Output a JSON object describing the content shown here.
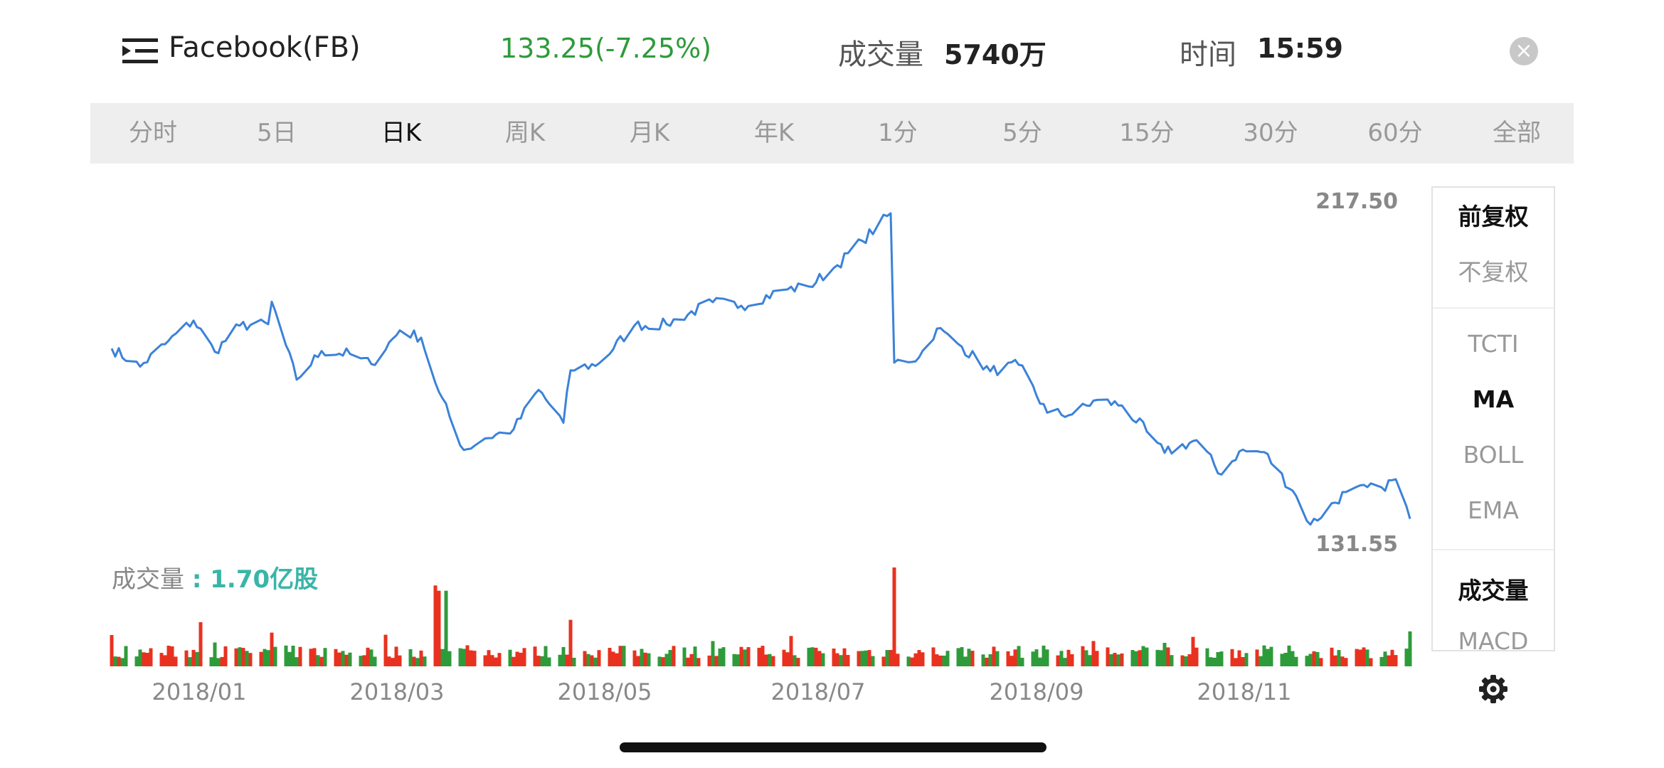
{
  "header": {
    "title": "Facebook(FB)",
    "price_change": "133.25(-7.25%)",
    "volume_label": "成交量",
    "volume_value": "5740万",
    "time_label": "时间",
    "time_value": "15:59",
    "icons": {
      "menu": "menu-icon",
      "close": "close-icon"
    }
  },
  "periods": [
    "分时",
    "5日",
    "日K",
    "周K",
    "月K",
    "年K",
    "1分",
    "5分",
    "15分",
    "30分",
    "60分",
    "全部"
  ],
  "active_period": "日K",
  "price_scale": {
    "max": "217.50",
    "min": "131.55"
  },
  "volume_title": {
    "label": "成交量 ",
    "value": ": 1.70亿股"
  },
  "x_axis_labels": [
    "2018/01",
    "2018/03",
    "2018/05",
    "2018/07",
    "2018/09",
    "2018/11"
  ],
  "side_panel": {
    "items": [
      {
        "label": "前复权",
        "active": true
      },
      {
        "label": "不复权",
        "active": false
      },
      {
        "label": "TCTI",
        "active": false
      },
      {
        "label": "MA",
        "active": true
      },
      {
        "label": "BOLL",
        "active": false
      },
      {
        "label": "EMA",
        "active": false
      },
      {
        "label": "成交量",
        "active": true
      },
      {
        "label": "MACD",
        "active": false
      }
    ]
  },
  "colors": {
    "line": "#3b82d8",
    "up": "#e8321f",
    "down": "#2e9b3a",
    "accent": "#3ab5a8"
  },
  "chart_data": {
    "type": "line",
    "series_name": "",
    "ylim": [
      131.55,
      217.5
    ],
    "x_labels": [
      "2018/01",
      "2018/03",
      "2018/05",
      "2018/07",
      "2018/09",
      "2018/11"
    ],
    "price_keypoints": [
      [
        "2017-12-18",
        180.2
      ],
      [
        "2017-12-26",
        175.2
      ],
      [
        "2018-01-02",
        181.4
      ],
      [
        "2018-01-10",
        187.9
      ],
      [
        "2018-01-16",
        179.3
      ],
      [
        "2018-01-23",
        186.5
      ],
      [
        "2018-01-31",
        186.9
      ],
      [
        "2018-02-01",
        193.1
      ],
      [
        "2018-02-08",
        171.6
      ],
      [
        "2018-02-15",
        179.5
      ],
      [
        "2018-02-23",
        178.7
      ],
      [
        "2018-03-01",
        175.9
      ],
      [
        "2018-03-09",
        185.2
      ],
      [
        "2018-03-15",
        183.2
      ],
      [
        "2018-03-20",
        168.2
      ],
      [
        "2018-03-27",
        152.2
      ],
      [
        "2018-04-02",
        155.4
      ],
      [
        "2018-04-10",
        157.9
      ],
      [
        "2018-04-17",
        168.8
      ],
      [
        "2018-04-24",
        159.7
      ],
      [
        "2018-04-26",
        174.2
      ],
      [
        "2018-05-04",
        176.1
      ],
      [
        "2018-05-14",
        186.6
      ],
      [
        "2018-05-23",
        186.9
      ],
      [
        "2018-06-05",
        193.0
      ],
      [
        "2018-06-13",
        192.0
      ],
      [
        "2018-06-25",
        196.4
      ],
      [
        "2018-07-02",
        197.3
      ],
      [
        "2018-07-10",
        203.2
      ],
      [
        "2018-07-17",
        209.9
      ],
      [
        "2018-07-25",
        217.5
      ],
      [
        "2018-07-26",
        176.3
      ],
      [
        "2018-08-02",
        177.8
      ],
      [
        "2018-08-07",
        185.7
      ],
      [
        "2018-08-14",
        180.7
      ],
      [
        "2018-08-22",
        173.9
      ],
      [
        "2018-08-30",
        175.7
      ],
      [
        "2018-09-07",
        162.5
      ],
      [
        "2018-09-14",
        162.0
      ],
      [
        "2018-09-21",
        166.0
      ],
      [
        "2018-09-28",
        164.5
      ],
      [
        "2018-10-05",
        157.3
      ],
      [
        "2018-10-10",
        151.4
      ],
      [
        "2018-10-19",
        154.9
      ],
      [
        "2018-10-26",
        145.4
      ],
      [
        "2018-10-31",
        151.8
      ],
      [
        "2018-11-07",
        151.6
      ],
      [
        "2018-11-16",
        139.5
      ],
      [
        "2018-11-20",
        131.6
      ],
      [
        "2018-11-30",
        140.6
      ],
      [
        "2018-12-10",
        141.9
      ],
      [
        "2018-12-14",
        144.1
      ],
      [
        "2018-12-18",
        133.2
      ]
    ],
    "volume_unit": "亿股",
    "volume_max": 1.7,
    "volume_spikes": [
      [
        "2018-01-12",
        0.76,
        "up"
      ],
      [
        "2018-02-01",
        0.58,
        "up"
      ],
      [
        "2018-03-19",
        1.39,
        "up"
      ],
      [
        "2018-03-20",
        1.3,
        "up"
      ],
      [
        "2018-03-22",
        1.3,
        "down"
      ],
      [
        "2018-04-26",
        0.8,
        "up"
      ],
      [
        "2018-07-26",
        1.7,
        "up"
      ],
      [
        "2018-12-18",
        0.6,
        "down"
      ]
    ]
  }
}
